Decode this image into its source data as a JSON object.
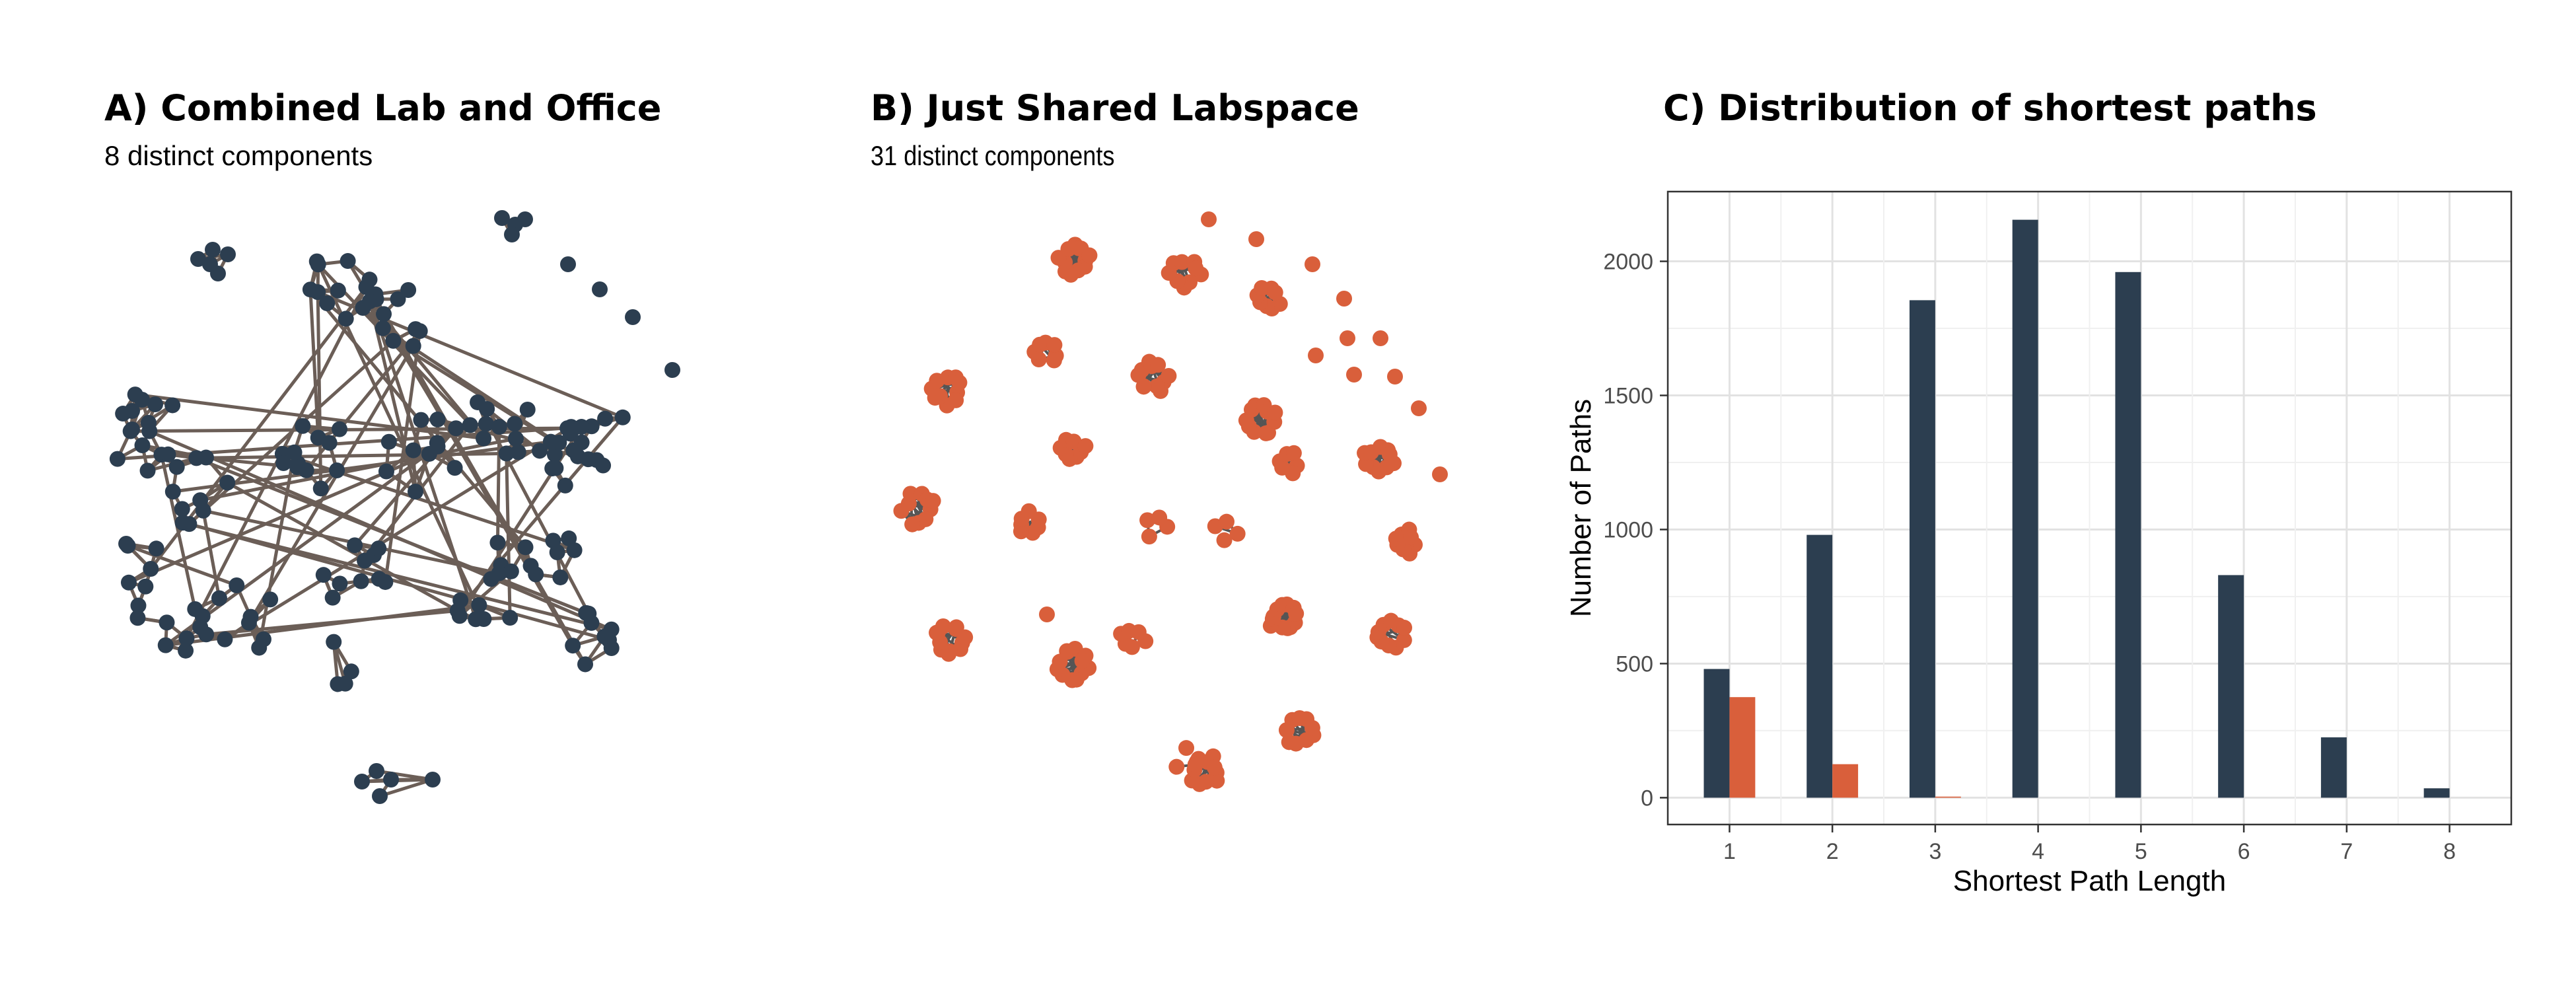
{
  "panel_a": {
    "title": "A) Combined Lab and Office",
    "subtitle": "8 distinct components",
    "node_color": "#2c3e50",
    "edge_color": "#6b5e57"
  },
  "panel_b": {
    "title": "B) Just Shared Labspace",
    "subtitle": "31 distinct components",
    "node_color": "#d95f3b",
    "edge_color": "#555555"
  },
  "chart_data": {
    "type": "bar",
    "title": "C) Distribution of shortest paths",
    "xlabel": "Shortest Path Length",
    "ylabel": "Number of Paths",
    "categories": [
      "1",
      "2",
      "3",
      "4",
      "5",
      "6",
      "7",
      "8"
    ],
    "series": [
      {
        "color": "#2c3e50",
        "values": [
          480,
          980,
          1855,
          2155,
          1960,
          830,
          225,
          35
        ]
      },
      {
        "color": "#d95f3b",
        "values": [
          375,
          125,
          4,
          0,
          0,
          0,
          0,
          0
        ]
      }
    ],
    "ylim": [
      -100,
      2260
    ],
    "yticks": [
      0,
      500,
      1000,
      1500,
      2000
    ],
    "grid": true,
    "legend": "none"
  }
}
